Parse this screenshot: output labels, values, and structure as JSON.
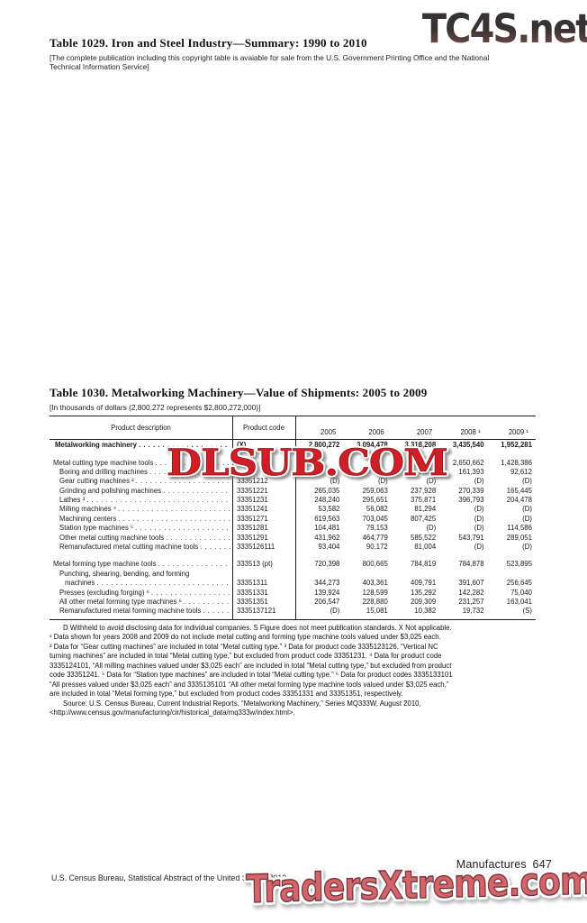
{
  "colors": {
    "watermark_red": "#cf1e26",
    "watermark_salmon": "#d2646a",
    "watermark_dark_gradient_top": "#343434",
    "watermark_dark_gradient_bottom": "#a9897e",
    "text": "#1a1a1a"
  },
  "watermarks": {
    "top": "TC4S.net",
    "middle": "DLSUB.COM",
    "bottom": "TradersXtreme.com"
  },
  "table1029": {
    "title": "Table 1029. Iron and Steel Industry—Summary: 1990 to 2010",
    "note": "[The complete publication including this copyright table is avaiable for sale from the U.S. Government Printing Office and the National Technical Information Service]"
  },
  "table1030": {
    "title": "Table 1030. Metalworking Machinery—Value of Shipments: 2005 to 2009",
    "note": "[In thousands of dollars (2,800,272 represents $2,800,272,000)]",
    "columns": [
      "Product description",
      "Product code",
      "2005",
      "2006",
      "2007",
      "2008 ¹",
      "2009 ¹"
    ],
    "rows": [
      {
        "label": "Metalworking machinery",
        "code": "(X)",
        "values": [
          "2,800,272",
          "3,094,478",
          "3,318,208",
          "3,435,540",
          "1,952,281"
        ],
        "bold": true,
        "indent": 2,
        "leader": true
      },
      {
        "label": "Metal cutting type machine tools",
        "code": "",
        "values": [
          "",
          "",
          "3,389",
          "2,650,662",
          "1,428,386"
        ],
        "indent": 0,
        "leader": true,
        "gap_before": 9
      },
      {
        "label": "Boring and drilling machines",
        "code": "",
        "values": [
          "",
          "",
          "0,220",
          "161,393",
          "92,612"
        ],
        "indent": 7,
        "leader": true
      },
      {
        "label": "Gear cutting machines ²",
        "code": "33351212",
        "values": [
          "(D)",
          "(D)",
          "(D)",
          "(D)",
          "(D)"
        ],
        "indent": 7,
        "leader": true
      },
      {
        "label": "Grinding and polishing machines",
        "code": "33351221",
        "values": [
          "265,035",
          "259,063",
          "237,928",
          "270,339",
          "165,445"
        ],
        "indent": 7,
        "leader": true
      },
      {
        "label": "Lathes ³",
        "code": "33351231",
        "values": [
          "248,240",
          "295,651",
          "375,871",
          "396,793",
          "204,478"
        ],
        "indent": 7,
        "leader": true
      },
      {
        "label": "Milling machines ⁴",
        "code": "33351241",
        "values": [
          "53,582",
          "56,082",
          "81,294",
          "(D)",
          "(D)"
        ],
        "indent": 7,
        "leader": true
      },
      {
        "label": "Machining centers",
        "code": "33351271",
        "values": [
          "619,563",
          "703,045",
          "807,425",
          "(D)",
          "(D)"
        ],
        "indent": 7,
        "leader": true
      },
      {
        "label": "Station type machines ⁵",
        "code": "33351281",
        "values": [
          "104,481",
          "79,153",
          "(D)",
          "(D)",
          "114,586"
        ],
        "indent": 7,
        "leader": true
      },
      {
        "label": "Other metal cutting machine tools",
        "code": "33351291",
        "values": [
          "431,962",
          "464,779",
          "585,522",
          "543,791",
          "289,051"
        ],
        "indent": 7,
        "leader": true
      },
      {
        "label": "Remanufactured metal cutting machine tools",
        "code": "3335126111",
        "values": [
          "93,404",
          "90,172",
          "81,004",
          "(D)",
          "(D)"
        ],
        "indent": 7,
        "leader": true
      },
      {
        "label": "Metal forming type machine tools",
        "code": "333513 (pt)",
        "values": [
          "720,398",
          "800,665",
          "784,819",
          "784,878",
          "523,895"
        ],
        "indent": 0,
        "leader": true,
        "gap_before": 9
      },
      {
        "label": "Punching, shearing, bending, and forming",
        "code": "",
        "values": [
          "",
          "",
          "",
          "",
          ""
        ],
        "indent": 7,
        "leader": false
      },
      {
        "label": "machines",
        "code": "33351311",
        "values": [
          "344,273",
          "403,361",
          "409,791",
          "391,607",
          "256,645"
        ],
        "indent": 13,
        "leader": true
      },
      {
        "label": "Presses (excluding forging) ⁶",
        "code": "33351331",
        "values": [
          "139,924",
          "128,599",
          "135,292",
          "142,282",
          "75,040"
        ],
        "indent": 7,
        "leader": true
      },
      {
        "label": "All other metal forming type machines ⁶",
        "code": "33351351",
        "values": [
          "206,547",
          "228,880",
          "209,309",
          "231,257",
          "163,041"
        ],
        "indent": 7,
        "leader": true
      },
      {
        "label": "Remanufactured metal forming machine tools",
        "code": "3335137121",
        "values": [
          "(D)",
          "15,081",
          "10,382",
          "19,732",
          "(S)"
        ],
        "indent": 7,
        "leader": true
      }
    ],
    "footnotes": [
      {
        "text": "D Withheld to avoid disclosing data for individual companies. S Figure does not meet publication standards. X Not applicable.",
        "indent": true
      },
      {
        "text": "¹ Data shown for years 2008 and 2009 do not include metal cutting and forming type machine tools valued under $3,025 each.",
        "indent": false
      },
      {
        "text": "² Data for “Gear cutting machines” are included in total “Metal cutting type.” ³ Data for product code 3335123126, “Vertical NC",
        "indent": false
      },
      {
        "text": "turning machines” are included in total “Metal cutting type,” but excluded from product code 33351231. ⁴ Data for product code",
        "indent": false
      },
      {
        "text": "3335124101, “All milling machines valued under $3,025 each” are included in total “Metal cutting type,” but excluded from product",
        "indent": false
      },
      {
        "text": "code 33351241. ⁵ Data for “Station type machines” are included in total “Metal cutting type.” ⁶ Data for product codes 3335133101",
        "indent": false
      },
      {
        "text": "“All presses valued under $3,025 each” and 3335135101 “All other metal forming type machine tools valued under $3,025 each,”",
        "indent": false
      },
      {
        "text": "are included in total “Metal forming type,” but excluded from product codes 33351331 and 33351351, respectively.",
        "indent": false
      },
      {
        "text": "Source: U.S. Census Bureau, Current Industrial Reports, “Metalworking Machinery,”  Series MQ333W, August 2010,",
        "indent": true
      },
      {
        "text": "<http://www.census.gov/manufacturing/cir/historical_data/mq333w/index.html>.",
        "indent": false
      }
    ]
  },
  "footer": {
    "page_label": "Manufactures  647",
    "credit": "U.S. Census Bureau, Statistical Abstract of the United States: 2012"
  }
}
